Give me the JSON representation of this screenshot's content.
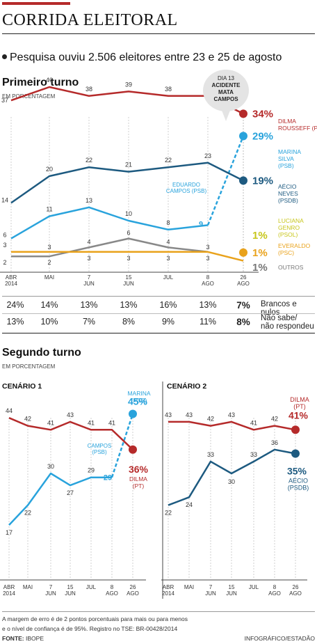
{
  "header": {
    "title": "CORRIDA ELEITORAL"
  },
  "lead": "Pesquisa ouviu 2.506 eleitores entre 23 e 25 de agosto",
  "first_round": {
    "title": "Primeiro turno",
    "unit": "EM PORCENTAGEM",
    "callout": [
      "DIA 13",
      "ACIDENTE",
      "MATA",
      "CAMPOS"
    ],
    "campos_label": [
      "EDUARDO",
      "CAMPOS (PSB)"
    ],
    "end_labels": [
      {
        "name": [
          "DILMA",
          "ROUSSEFF (PT)"
        ],
        "value": "34%",
        "color": "#b52a2a"
      },
      {
        "name": [
          "MARINA",
          "SILVA",
          "(PSB)"
        ],
        "value": "29%",
        "color": "#29a3dc"
      },
      {
        "name": [
          "AÉCIO",
          "NEVES",
          "(PSDB)"
        ],
        "value": "19%",
        "color": "#1d5a80"
      },
      {
        "name": [
          "LUCIANA",
          "GENRO",
          "(PSOL)"
        ],
        "value": "1%",
        "color": "#c7c61a"
      },
      {
        "name": [
          "EVERALDO",
          "(PSC)"
        ],
        "value": "1%",
        "color": "#e9a21b"
      },
      {
        "name": [
          "OUTROS"
        ],
        "value": "1%",
        "color": "#777777"
      }
    ],
    "table": {
      "rows": [
        {
          "values": [
            "24%",
            "14%",
            "13%",
            "13%",
            "16%",
            "13%",
            "7%"
          ],
          "label": [
            "Brancos e nulos"
          ]
        },
        {
          "values": [
            "13%",
            "10%",
            "7%",
            "8%",
            "9%",
            "11%",
            "8%"
          ],
          "label": [
            "Não sabe/",
            "não respondeu"
          ]
        }
      ]
    }
  },
  "second_round": {
    "title": "Segundo turno",
    "unit": "EM PORCENTAGEM",
    "scenario1": {
      "title": "CENÁRIO 1",
      "campos_label": [
        "CAMPOS",
        "(PSB)"
      ],
      "marina_label": [
        "MARINA",
        "(PSB)"
      ],
      "marina_value": "45%",
      "dilma_label": [
        "DILMA",
        "(PT)"
      ],
      "dilma_value": "36%"
    },
    "scenario2": {
      "title": "CENÁRIO 2",
      "dilma_label": [
        "DILMA",
        "(PT)"
      ],
      "dilma_value": "41%",
      "aecio_label": [
        "AÉCIO",
        "(PSDB)"
      ],
      "aecio_value": "35%"
    }
  },
  "footer": {
    "note": [
      "A margem de erro é de 2 pontos porcentuais para mais ou para menos",
      "e o nível de confiança é de 95%. Registro no TSE: BR-00428/2014"
    ],
    "source_label": "FONTE:",
    "source": "IBOPE",
    "credit": "INFOGRÁFICO/ESTADÃO"
  },
  "chart_data": [
    {
      "type": "line",
      "title": "Primeiro turno",
      "ylabel": "EM PORCENTAGEM",
      "categories": [
        "ABR 2014",
        "MAI",
        "7 JUN",
        "15 JUN",
        "JUL",
        "8 AGO",
        "26 AGO"
      ],
      "series": [
        {
          "name": "DILMA ROUSSEFF (PT)",
          "color": "#b52a2a",
          "values": [
            37,
            40,
            38,
            39,
            38,
            38,
            34
          ]
        },
        {
          "name": "AÉCIO NEVES (PSDB)",
          "color": "#1d5a80",
          "values": [
            14,
            20,
            22,
            21,
            22,
            23,
            19
          ]
        },
        {
          "name": "EDUARDO CAMPOS (PSB)",
          "color": "#29a3dc",
          "values": [
            6,
            11,
            13,
            10,
            8,
            9,
            null
          ]
        },
        {
          "name": "MARINA SILVA (PSB)",
          "color": "#29a3dc",
          "values": [
            null,
            null,
            null,
            null,
            null,
            9,
            29
          ]
        },
        {
          "name": "LUCIANA GENRO (PSOL)",
          "color": "#c7c61a",
          "values": [
            null,
            null,
            null,
            null,
            null,
            null,
            1
          ]
        },
        {
          "name": "EVERALDO (PSC)",
          "color": "#e9a21b",
          "values": [
            3,
            3,
            3,
            3,
            3,
            3,
            1
          ]
        },
        {
          "name": "OUTROS",
          "color": "#777777",
          "values": [
            2,
            2,
            4,
            6,
            4,
            3,
            1
          ]
        }
      ]
    },
    {
      "type": "line",
      "title": "CENÁRIO 1",
      "categories": [
        "ABR 2014",
        "MAI",
        "7 JUN",
        "15 JUN",
        "JUL",
        "8 AGO",
        "26 AGO"
      ],
      "series": [
        {
          "name": "DILMA (PT)",
          "color": "#b52a2a",
          "values": [
            44,
            42,
            41,
            43,
            41,
            41,
            36
          ]
        },
        {
          "name": "CAMPOS (PSB)",
          "color": "#29a3dc",
          "values": [
            17,
            22,
            30,
            27,
            29,
            29,
            null
          ]
        },
        {
          "name": "MARINA (PSB)",
          "color": "#29a3dc",
          "values": [
            null,
            null,
            null,
            null,
            null,
            29,
            45
          ]
        }
      ]
    },
    {
      "type": "line",
      "title": "CENÁRIO 2",
      "categories": [
        "ABR 2014",
        "MAI",
        "7 JUN",
        "15 JUN",
        "JUL",
        "8 AGO",
        "26 AGO"
      ],
      "series": [
        {
          "name": "DILMA (PT)",
          "color": "#b52a2a",
          "values": [
            43,
            43,
            42,
            43,
            41,
            42,
            41
          ]
        },
        {
          "name": "AÉCIO (PSDB)",
          "color": "#1d5a80",
          "values": [
            22,
            24,
            33,
            30,
            33,
            36,
            35
          ]
        }
      ]
    }
  ]
}
